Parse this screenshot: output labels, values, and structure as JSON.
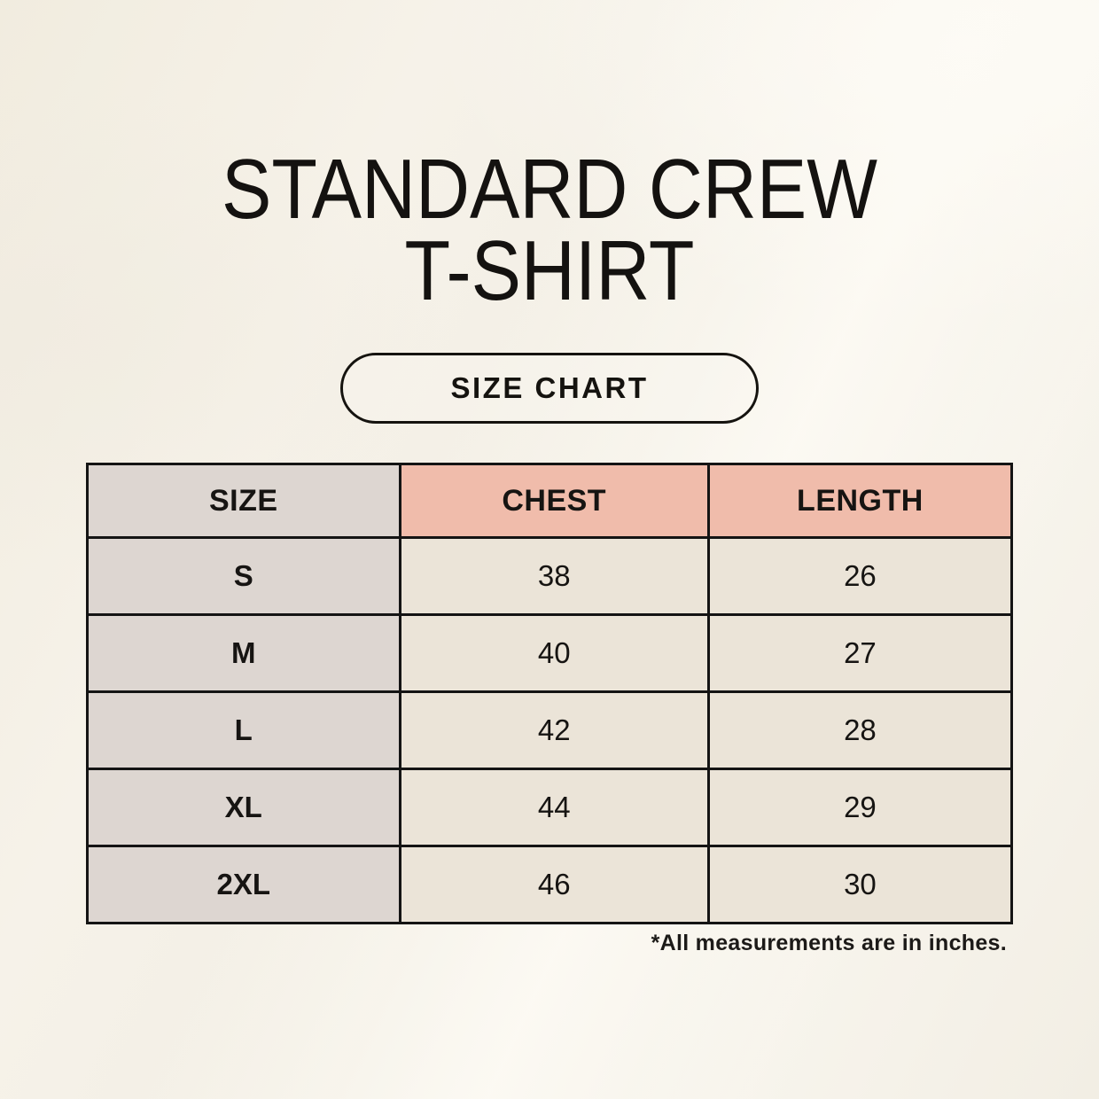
{
  "page": {
    "title_line1": "STANDARD CREW",
    "title_line2": "T-SHIRT",
    "size_chart_button": "SIZE CHART",
    "footnote": "*All measurements are in inches."
  },
  "table": {
    "headers": [
      "SIZE",
      "CHEST",
      "LENGTH"
    ],
    "rows": [
      [
        "S",
        "38",
        "26"
      ],
      [
        "M",
        "40",
        "27"
      ],
      [
        "L",
        "42",
        "28"
      ],
      [
        "XL",
        "44",
        "29"
      ],
      [
        "2XL",
        "46",
        "30"
      ]
    ]
  },
  "colors": {
    "background_cream": "#f4f0e7",
    "header_accent_pink": "#f0bcab",
    "size_column_gray": "#ddd6d1",
    "data_cell_cream": "#ebe4d8",
    "border_black": "#141414"
  },
  "chart_data": {
    "type": "table",
    "title": "STANDARD CREW T-SHIRT",
    "subtitle": "SIZE CHART",
    "columns": [
      "SIZE",
      "CHEST",
      "LENGTH"
    ],
    "rows": [
      [
        "S",
        38,
        26
      ],
      [
        "M",
        40,
        27
      ],
      [
        "L",
        42,
        28
      ],
      [
        "XL",
        44,
        29
      ],
      [
        "2XL",
        46,
        30
      ]
    ],
    "units": "inches",
    "note": "*All measurements are in inches."
  }
}
